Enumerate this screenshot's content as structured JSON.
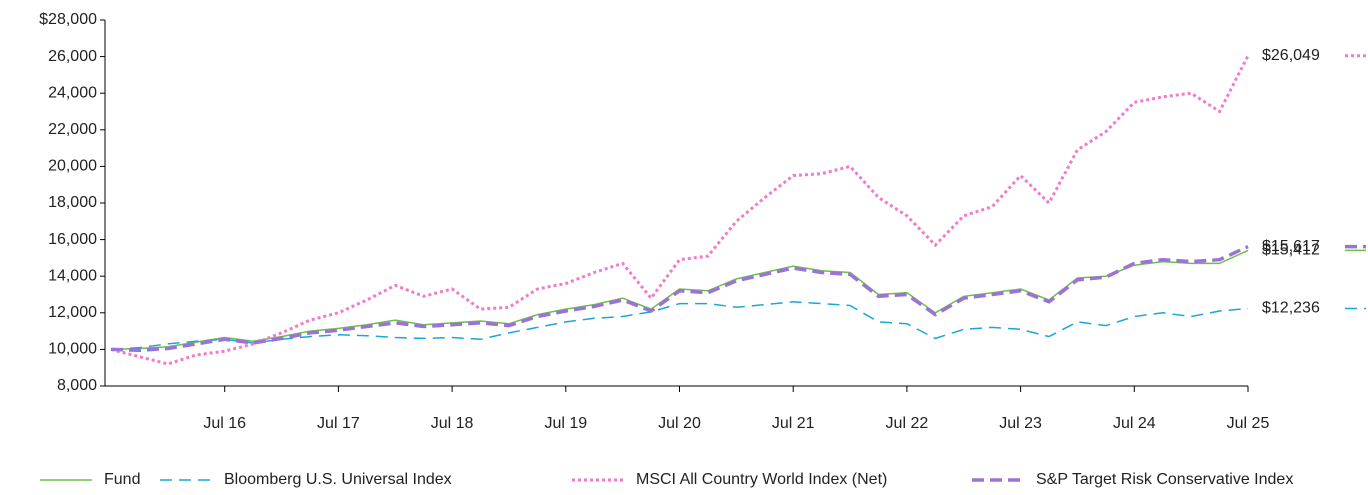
{
  "chart_data": {
    "type": "line",
    "x": [
      "Jul 15",
      "Oct 15",
      "Jan 16",
      "Apr 16",
      "Jul 16",
      "Oct 16",
      "Jan 17",
      "Apr 17",
      "Jul 17",
      "Oct 17",
      "Jan 18",
      "Apr 18",
      "Jul 18",
      "Oct 18",
      "Jan 19",
      "Apr 19",
      "Jul 19",
      "Oct 19",
      "Jan 20",
      "Apr 20",
      "Jul 20",
      "Oct 20",
      "Jan 21",
      "Apr 21",
      "Jul 21",
      "Oct 21",
      "Jan 22",
      "Apr 22",
      "Jul 22",
      "Oct 22",
      "Jan 23",
      "Apr 23",
      "Jul 23",
      "Oct 23",
      "Jan 24",
      "Apr 24",
      "Jul 24",
      "Oct 24",
      "Jan 25",
      "Apr 25",
      "Jul 25"
    ],
    "xticks": [
      "Jul 16",
      "Jul 17",
      "Jul 18",
      "Jul 19",
      "Jul 20",
      "Jul 21",
      "Jul 22",
      "Jul 23",
      "Jul 24",
      "Jul 25"
    ],
    "ylim": [
      8000,
      28000
    ],
    "yticks": [
      {
        "value": 8000,
        "label": "8,000"
      },
      {
        "value": 10000,
        "label": "10,000"
      },
      {
        "value": 12000,
        "label": "12,000"
      },
      {
        "value": 14000,
        "label": "14,000"
      },
      {
        "value": 16000,
        "label": "16,000"
      },
      {
        "value": 18000,
        "label": "18,000"
      },
      {
        "value": 20000,
        "label": "20,000"
      },
      {
        "value": 22000,
        "label": "22,000"
      },
      {
        "value": 24000,
        "label": "24,000"
      },
      {
        "value": 26000,
        "label": "26,000"
      },
      {
        "value": 28000,
        "label": "$28,000"
      }
    ],
    "grid": false,
    "series": [
      {
        "name": "Fund",
        "color": "#6cc04a",
        "style": "solid",
        "end_label": "$15,412",
        "values": [
          10000,
          10050,
          10150,
          10400,
          10650,
          10450,
          10700,
          11000,
          11150,
          11350,
          11600,
          11350,
          11450,
          11550,
          11400,
          11900,
          12200,
          12450,
          12800,
          12200,
          13300,
          13200,
          13850,
          14200,
          14550,
          14300,
          14200,
          13000,
          13100,
          12000,
          12900,
          13100,
          13300,
          12700,
          13900,
          14000,
          14600,
          14800,
          14700,
          14700,
          15412
        ]
      },
      {
        "name": "Bloomberg U.S. Universal Index",
        "color": "#1aa6d8",
        "style": "dashed",
        "end_label": "$12,236",
        "values": [
          10000,
          10100,
          10300,
          10450,
          10550,
          10350,
          10550,
          10700,
          10800,
          10750,
          10650,
          10600,
          10650,
          10550,
          10900,
          11200,
          11500,
          11700,
          11800,
          12050,
          12500,
          12500,
          12300,
          12450,
          12600,
          12500,
          12400,
          11500,
          11400,
          10600,
          11100,
          11200,
          11100,
          10700,
          11500,
          11300,
          11800,
          12000,
          11800,
          12100,
          12236
        ]
      },
      {
        "name": "MSCI All Country World Index (Net)",
        "color": "#f27ac8",
        "style": "dotted",
        "end_label": "$26,049",
        "values": [
          10000,
          9600,
          9200,
          9700,
          9900,
          10300,
          10900,
          11600,
          12000,
          12700,
          13500,
          12900,
          13300,
          12200,
          12300,
          13300,
          13600,
          14200,
          14700,
          12800,
          14900,
          15100,
          17000,
          18300,
          19500,
          19600,
          20000,
          18300,
          17300,
          15700,
          17300,
          17800,
          19500,
          18000,
          20900,
          21900,
          23500,
          23800,
          24000,
          23000,
          26049
        ]
      },
      {
        "name": "S&P Target Risk Conservative Index",
        "color": "#9b72d6",
        "style": "longdash",
        "end_label": "$15,617",
        "values": [
          10000,
          9950,
          10050,
          10300,
          10550,
          10350,
          10600,
          10900,
          11050,
          11250,
          11450,
          11250,
          11350,
          11450,
          11300,
          11800,
          12100,
          12350,
          12700,
          12100,
          13200,
          13100,
          13750,
          14100,
          14450,
          14200,
          14100,
          12900,
          13000,
          11900,
          12800,
          13000,
          13200,
          12600,
          13800,
          13950,
          14700,
          14900,
          14800,
          14900,
          15617
        ]
      }
    ]
  }
}
